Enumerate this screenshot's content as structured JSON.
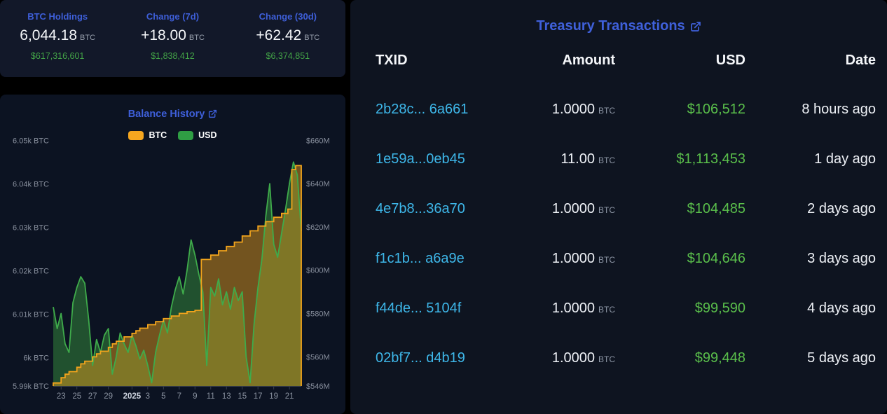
{
  "stats": [
    {
      "label": "BTC Holdings",
      "value": "6,044.18",
      "unit": "BTC",
      "usd": "$617,316,601"
    },
    {
      "label": "Change (7d)",
      "value": "+18.00",
      "unit": "BTC",
      "usd": "$1,838,412"
    },
    {
      "label": "Change (30d)",
      "value": "+62.42",
      "unit": "BTC",
      "usd": "$6,374,851"
    }
  ],
  "chart": {
    "title": "Balance History",
    "legend": [
      {
        "label": "BTC",
        "color": "#f6a61f"
      },
      {
        "label": "USD",
        "color": "#2f9e44"
      }
    ]
  },
  "chart_data": {
    "type": "area",
    "title": "Balance History",
    "x_axis_note": "days, 0 = Dec 22, ticks are calendar days Dec 23 - Jan 21, 2025 marks Jan 1",
    "x_range": [
      0,
      31.5
    ],
    "x_ticks": [
      [
        "23",
        1
      ],
      [
        "25",
        3
      ],
      [
        "27",
        5
      ],
      [
        "29",
        7
      ],
      [
        "2025",
        10
      ],
      [
        "3",
        12
      ],
      [
        "5",
        14
      ],
      [
        "7",
        16
      ],
      [
        "9",
        18
      ],
      [
        "11",
        20
      ],
      [
        "13",
        22
      ],
      [
        "15",
        24
      ],
      [
        "17",
        26
      ],
      [
        "19",
        28
      ],
      [
        "21",
        30
      ]
    ],
    "y_left": {
      "title": "BTC holdings",
      "range": [
        5993.5,
        6052
      ],
      "ticks": [
        [
          "6.05k BTC",
          6050
        ],
        [
          "6.04k BTC",
          6040
        ],
        [
          "6.03k BTC",
          6030
        ],
        [
          "6.02k BTC",
          6020
        ],
        [
          "6.01k BTC",
          6010
        ],
        [
          "6k BTC",
          6000
        ],
        [
          "5.99k BTC",
          5993.5
        ]
      ]
    },
    "y_right": {
      "title": "USD value ($M)",
      "range": [
        546.5,
        664
      ],
      "ticks": [
        [
          "$660M",
          660
        ],
        [
          "$640M",
          640
        ],
        [
          "$620M",
          620
        ],
        [
          "$600M",
          600
        ],
        [
          "$580M",
          580
        ],
        [
          "$560M",
          560
        ],
        [
          "$546M",
          546.5
        ]
      ]
    },
    "series": [
      {
        "name": "BTC",
        "type": "step-area",
        "axis": "left",
        "color": "#f2a41c",
        "fill": "rgba(242,164,28,0.45)",
        "points": [
          [
            0,
            5994.2
          ],
          [
            1,
            5995.4
          ],
          [
            1.5,
            5996.2
          ],
          [
            2,
            5996.8
          ],
          [
            3,
            5997.8
          ],
          [
            3.5,
            5998.6
          ],
          [
            4,
            5999.2
          ],
          [
            5,
            6000.2
          ],
          [
            5.5,
            6000.9
          ],
          [
            6,
            6001.5
          ],
          [
            7,
            6002.4
          ],
          [
            7.5,
            6003.2
          ],
          [
            8,
            6003.8
          ],
          [
            9,
            6004.8
          ],
          [
            10,
            6005.6
          ],
          [
            10.5,
            6006.2
          ],
          [
            11,
            6006.8
          ],
          [
            12,
            6007.6
          ],
          [
            13,
            6008.3
          ],
          [
            14,
            6009.0
          ],
          [
            15,
            6009.6
          ],
          [
            16,
            6010.2
          ],
          [
            17,
            6010.6
          ],
          [
            18,
            6010.9
          ],
          [
            18.8,
            6022.6
          ],
          [
            20,
            6023.6
          ],
          [
            21,
            6024.6
          ],
          [
            22,
            6025.6
          ],
          [
            23,
            6026.6
          ],
          [
            24,
            6028.0
          ],
          [
            25,
            6029.2
          ],
          [
            26,
            6030.3
          ],
          [
            27,
            6031.3
          ],
          [
            28,
            6032.3
          ],
          [
            29,
            6033.2
          ],
          [
            29.8,
            6034.2
          ],
          [
            30.3,
            6043.3
          ],
          [
            30.8,
            6044.2
          ]
        ]
      },
      {
        "name": "USD",
        "type": "area",
        "axis": "right",
        "color": "#3fab4b",
        "fill": "rgba(56,150,62,0.48)",
        "x_step": 0.5,
        "values": [
          583,
          573,
          580,
          566,
          562,
          585,
          592,
          597,
          594,
          577,
          556,
          568,
          562,
          570,
          573,
          552,
          560,
          571,
          566,
          562,
          570,
          565,
          559,
          563,
          556,
          548,
          562,
          570,
          577,
          571,
          583,
          591,
          597,
          589,
          600,
          614,
          607,
          598,
          590,
          556,
          592,
          588,
          596,
          584,
          590,
          582,
          592,
          586,
          590,
          560,
          548,
          575,
          592,
          605,
          625,
          640,
          612,
          606,
          617,
          628,
          640,
          650,
          644,
          618
        ]
      }
    ]
  },
  "transactions": {
    "title": "Treasury Transactions",
    "columns": [
      "TXID",
      "Amount",
      "USD",
      "Date"
    ],
    "rows": [
      {
        "txid": "2b28c... 6a661",
        "amount": "1.0000",
        "unit": "BTC",
        "usd": "$106,512",
        "date": "8 hours ago"
      },
      {
        "txid": "1e59a...0eb45",
        "amount": "11.00",
        "unit": "BTC",
        "usd": "$1,113,453",
        "date": "1 day ago"
      },
      {
        "txid": "4e7b8...36a70",
        "amount": "1.0000",
        "unit": "BTC",
        "usd": "$104,485",
        "date": "2 days ago"
      },
      {
        "txid": "f1c1b... a6a9e",
        "amount": "1.0000",
        "unit": "BTC",
        "usd": "$104,646",
        "date": "3 days ago"
      },
      {
        "txid": "f44de... 5104f",
        "amount": "1.0000",
        "unit": "BTC",
        "usd": "$99,590",
        "date": "4 days ago"
      },
      {
        "txid": "02bf7... d4b19",
        "amount": "1.0000",
        "unit": "BTC",
        "usd": "$99,448",
        "date": "5 days ago"
      }
    ]
  },
  "icons": {
    "external_link": "box-with-arrow"
  },
  "colors": {
    "accent_blue": "#3e5fd9",
    "txid_cyan": "#3eb7e9",
    "table_green": "#5abf4b",
    "stats_green": "#43a447",
    "btc_orange": "#f2a41c",
    "usd_green": "#3fab4b",
    "bg_stats": "#121829",
    "bg_chart": "#0c1322",
    "bg_table": "#0e1420"
  }
}
